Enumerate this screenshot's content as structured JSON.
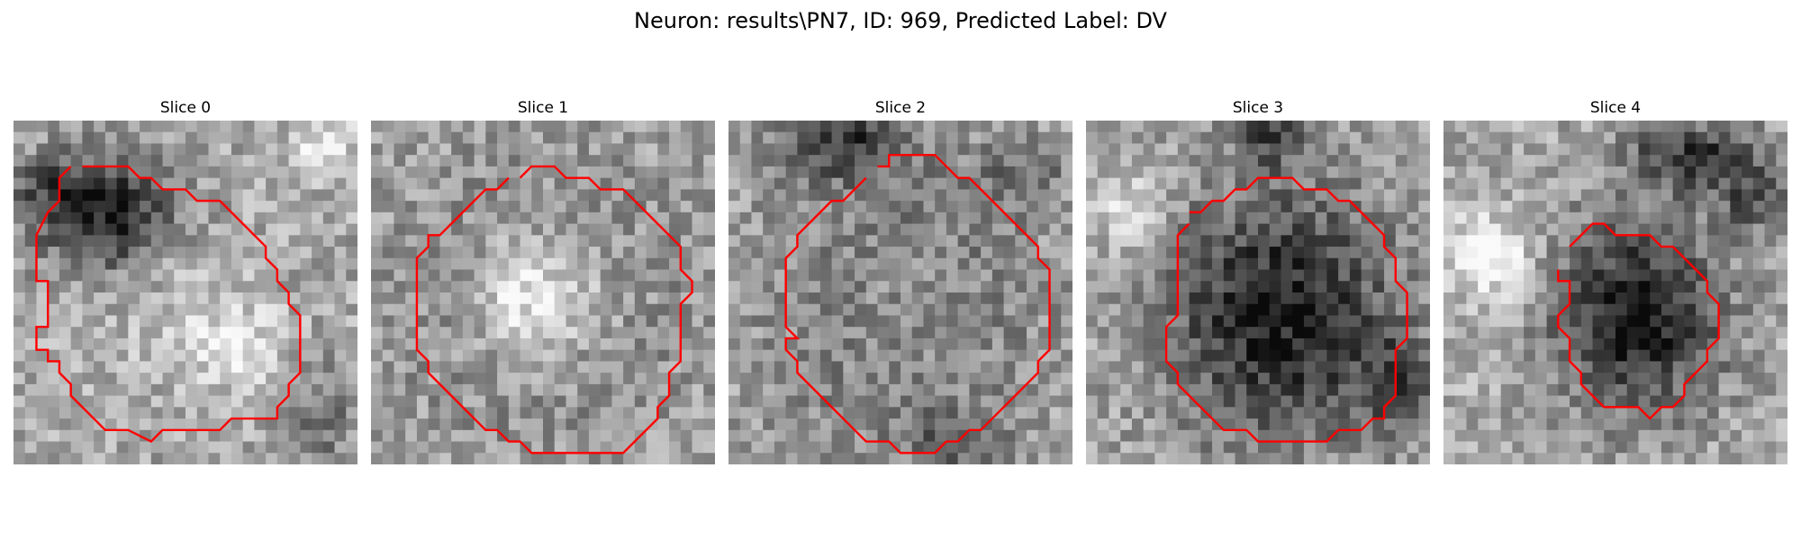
{
  "figure": {
    "title": "Neuron: results\\PN7, ID: 969, Predicted Label: DV"
  },
  "contour_color": "#ff0000",
  "panels": [
    {
      "title": "Slice 0"
    },
    {
      "title": "Slice 1"
    },
    {
      "title": "Slice 2"
    },
    {
      "title": "Slice 3"
    },
    {
      "title": "Slice 4"
    }
  ]
}
